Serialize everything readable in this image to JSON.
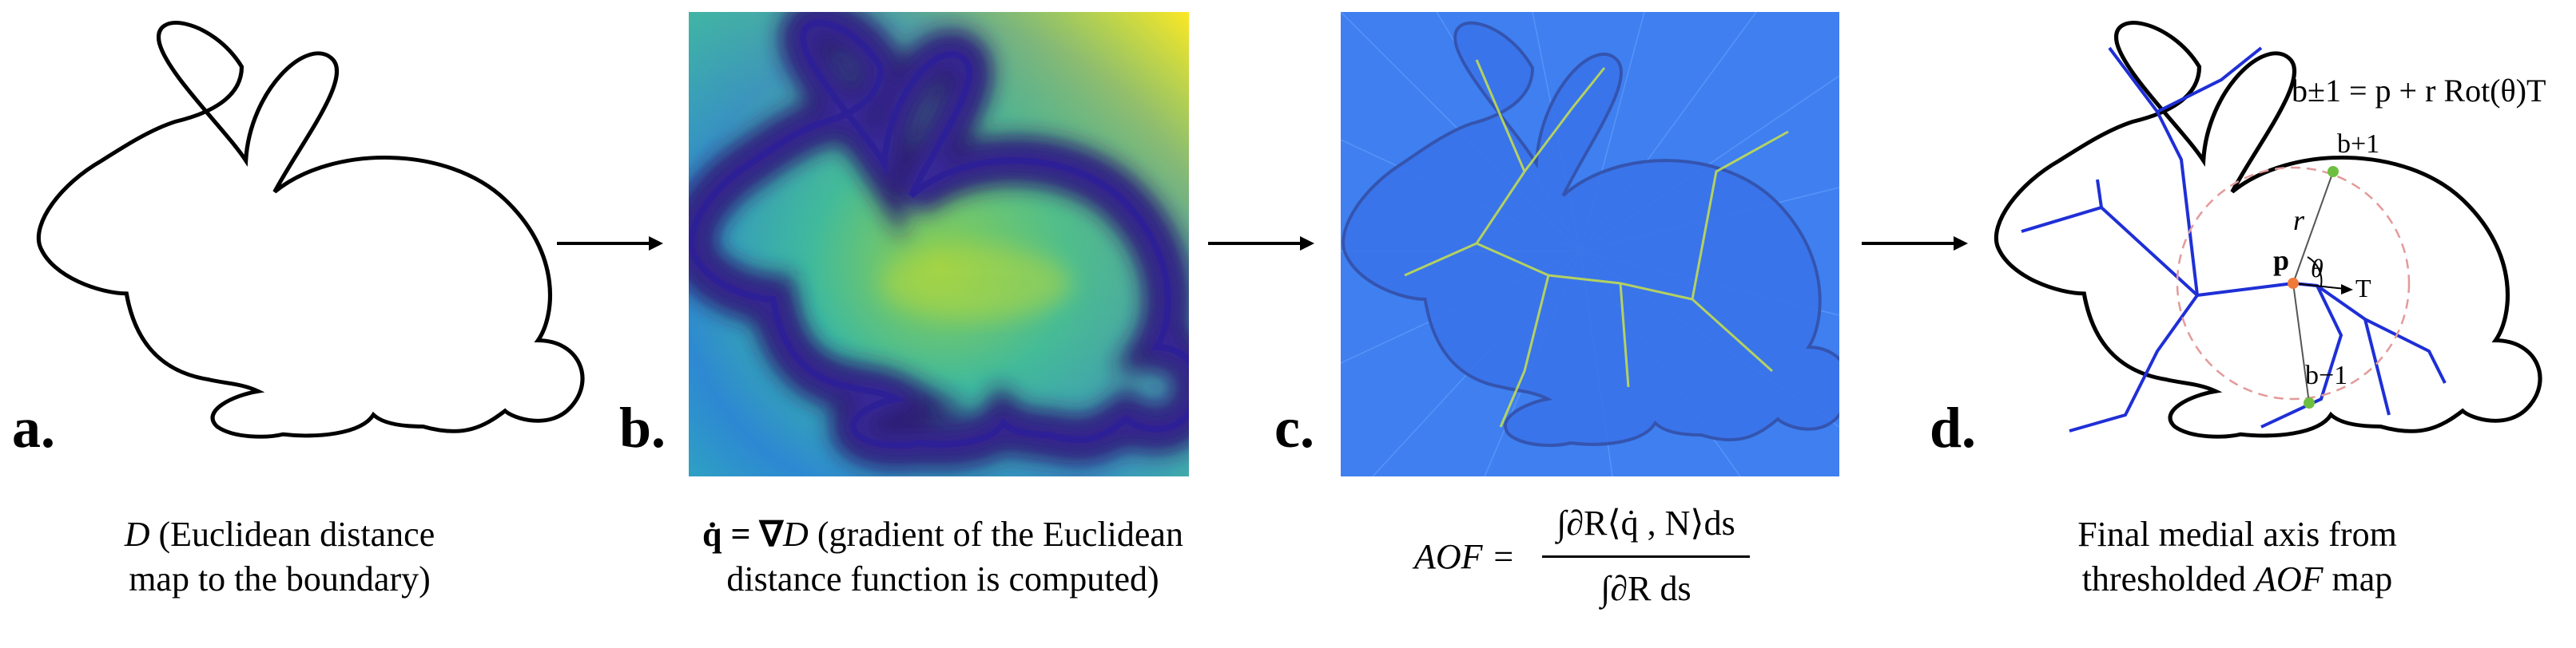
{
  "panels": [
    {
      "letter": "a.",
      "caption_var": "D",
      "caption_line1": " (Euclidean distance",
      "caption_line2": "map to the boundary)"
    },
    {
      "letter": "b.",
      "caption_sym": "q̇ =  ∇",
      "caption_var": "D",
      "caption_line1": " (gradient of the Euclidean",
      "caption_line2": "distance function is computed)"
    },
    {
      "letter": "c.",
      "formula_lhs": "AOF =",
      "formula_num": "∫∂R⟨q̇ , N⟩ds",
      "formula_den": "∫∂R ds"
    },
    {
      "letter": "d.",
      "caption_line1": "Final medial axis from",
      "caption_line2_pre": "thresholded ",
      "caption_line2_var": "AOF",
      "caption_line2_post": " map"
    }
  ],
  "panel_d_labels": {
    "equation": "b±1 = p + r Rot(θ)T",
    "b_plus": "b+1",
    "b_minus": "b−1",
    "p": "p",
    "r": "r",
    "theta": "θ",
    "T": "T"
  },
  "colors": {
    "medial_axis": "#1f2fd6",
    "point_p": "#f07a3a",
    "boundary_points": "#6fbf3f",
    "circle": "#e39a9a"
  }
}
